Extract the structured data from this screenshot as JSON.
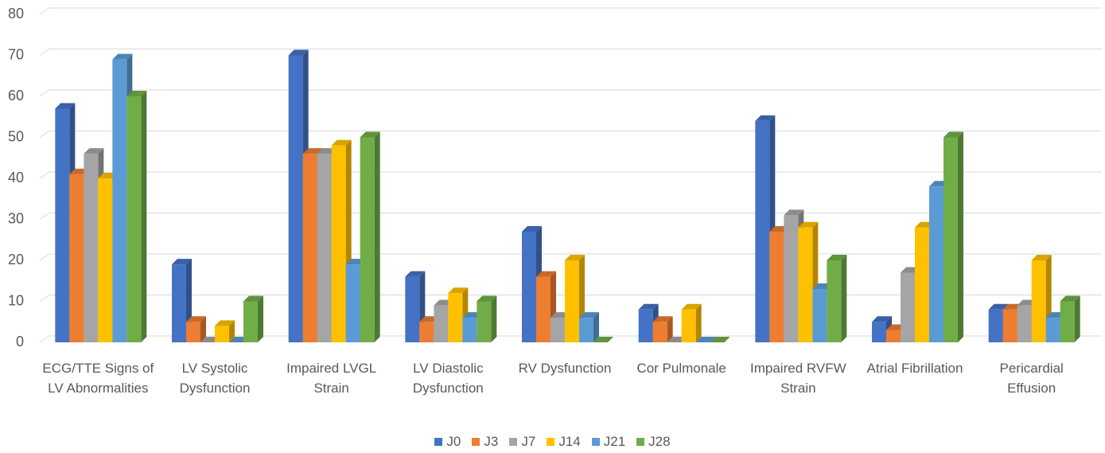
{
  "chart_data": {
    "type": "bar",
    "categories": [
      "ECG/TTE Signs of LV Abnormalities",
      "LV Systolic Dysfunction",
      "Impaired LVGL Strain",
      "LV Diastolic Dysfunction",
      "RV Dysfunction",
      "Cor Pulmonale",
      "Impaired RVFW Strain",
      "Atrial Fibrillation",
      "Pericardial Effusion"
    ],
    "series": [
      {
        "name": "J0",
        "color": "#4472c4",
        "values": [
          57,
          19,
          70,
          16,
          27,
          8,
          54,
          5,
          8
        ]
      },
      {
        "name": "J3",
        "color": "#ed7d31",
        "values": [
          41,
          5,
          46,
          5,
          16,
          5,
          27,
          3,
          8
        ]
      },
      {
        "name": "J7",
        "color": "#a5a5a5",
        "values": [
          46,
          0,
          46,
          9,
          6,
          0,
          31,
          17,
          9
        ]
      },
      {
        "name": "J14",
        "color": "#ffc000",
        "values": [
          40,
          4,
          48,
          12,
          20,
          8,
          28,
          28,
          20
        ]
      },
      {
        "name": "J21",
        "color": "#5b9bd5",
        "values": [
          69,
          0,
          19,
          6,
          6,
          0,
          13,
          38,
          6
        ]
      },
      {
        "name": "J28",
        "color": "#70ad47",
        "values": [
          60,
          10,
          50,
          10,
          0,
          0,
          20,
          50,
          10
        ]
      }
    ],
    "ylim": [
      0,
      80
    ],
    "yticks": [
      0,
      10,
      20,
      30,
      40,
      50,
      60,
      70,
      80
    ],
    "grid": true,
    "legend": "bottom"
  }
}
